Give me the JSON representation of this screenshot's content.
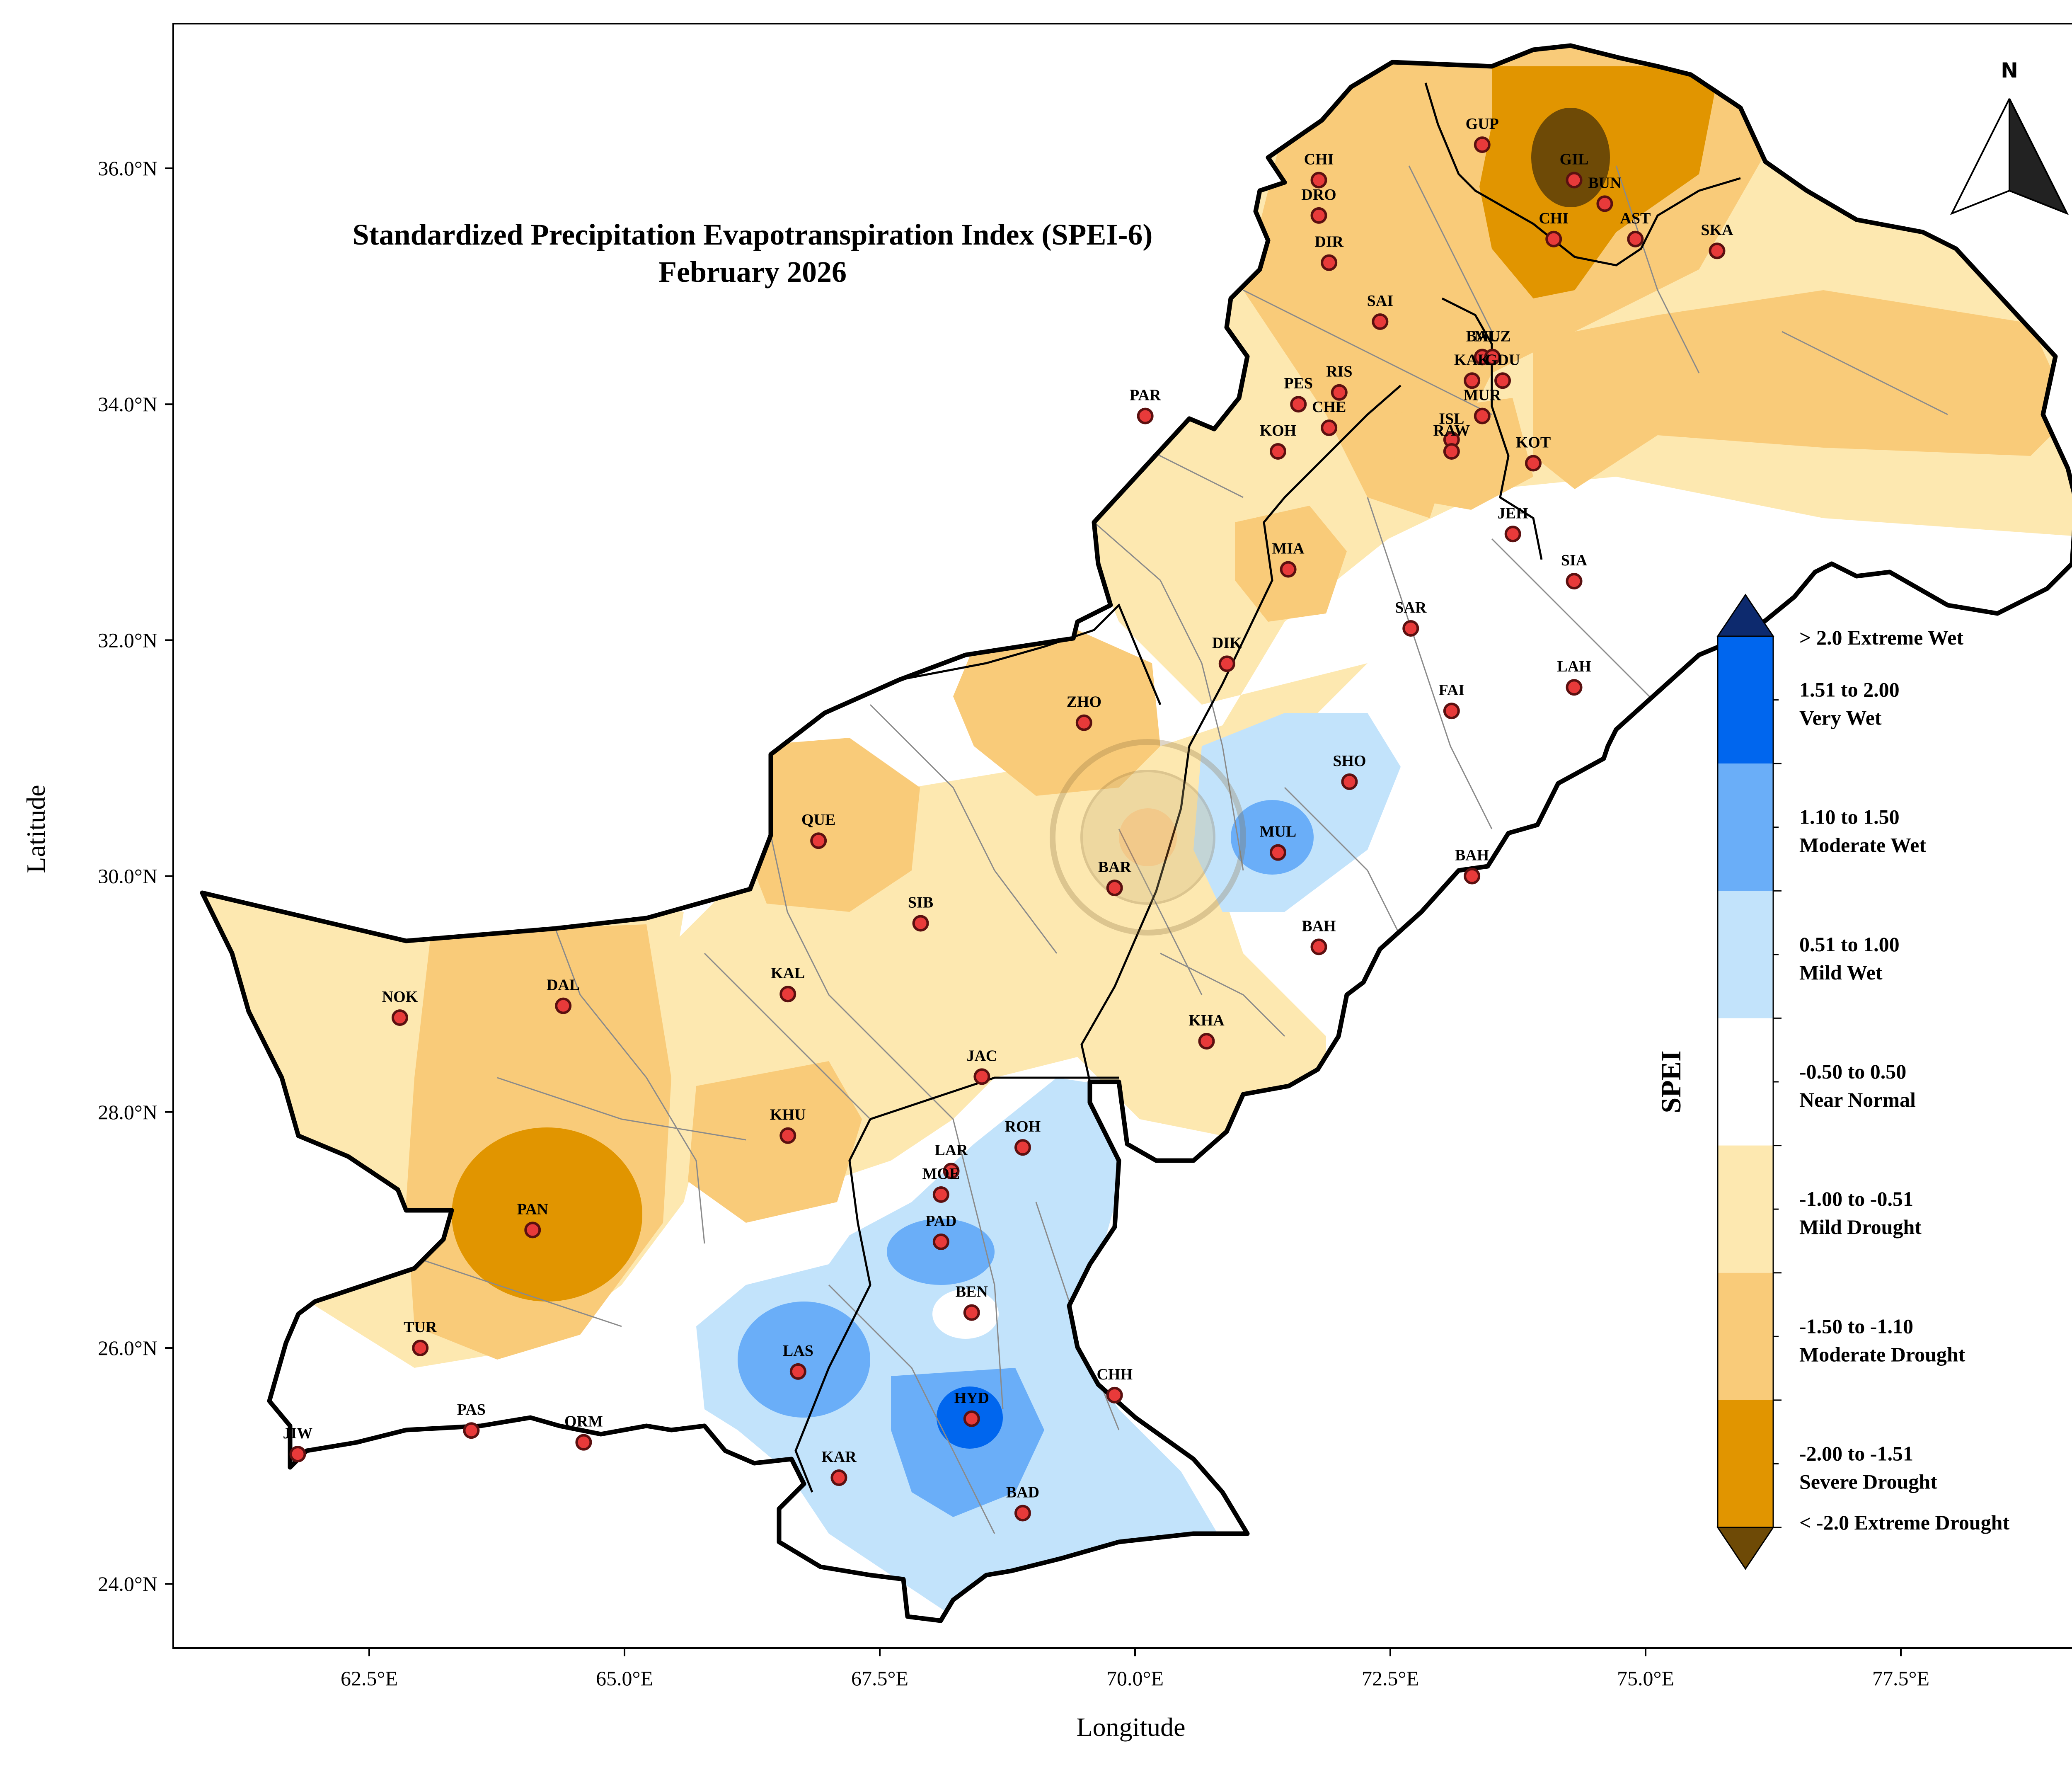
{
  "title": {
    "line1": "Standardized Precipitation Evapotranspiration Index (SPEI-6)",
    "line2": "February 2026"
  },
  "axes": {
    "xlabel": "Longitude",
    "ylabel": "Latitude",
    "xticks": [
      "62.5°E",
      "65.0°E",
      "67.5°E",
      "70.0°E",
      "72.5°E",
      "75.0°E",
      "77.5°E"
    ],
    "yticks": [
      "36.0°N",
      "34.0°N",
      "32.0°N",
      "30.0°N",
      "28.0°N",
      "26.0°N",
      "24.0°N"
    ]
  },
  "north_arrow": {
    "label": "N"
  },
  "colorbar": {
    "title": "SPEI",
    "top_extension": {
      "label": "> 2.0 Extreme Wet",
      "color": "#0d2a6e"
    },
    "bottom_extension": {
      "label": "< -2.0 Extreme Drought",
      "color": "#6e4a06"
    },
    "classes": [
      {
        "line1": "1.51 to 2.00",
        "line2": "Very Wet",
        "color": "#0066ee"
      },
      {
        "line1": "1.10 to 1.50",
        "line2": "Moderate Wet",
        "color": "#6aaef8"
      },
      {
        "line1": "0.51 to 1.00",
        "line2": "Mild Wet",
        "color": "#c2e3fb"
      },
      {
        "line1": "-0.50 to 0.50",
        "line2": "Near Normal",
        "color": "#ffffff"
      },
      {
        "line1": "-1.00 to -0.51",
        "line2": "Mild Drought",
        "color": "#fde8b0"
      },
      {
        "line1": "-1.50 to -1.10",
        "line2": "Moderate Drought",
        "color": "#f9cb79"
      },
      {
        "line1": "-2.00 to -1.51",
        "line2": "Severe Drought",
        "color": "#e19500"
      }
    ]
  },
  "stations": [
    {
      "name": "GUP",
      "lon": 73.4,
      "lat": 36.2
    },
    {
      "name": "GIL",
      "lon": 74.3,
      "lat": 35.9
    },
    {
      "name": "BUN",
      "lon": 74.6,
      "lat": 35.7
    },
    {
      "name": "CHI",
      "lon": 71.8,
      "lat": 35.9
    },
    {
      "name": "DRO",
      "lon": 71.8,
      "lat": 35.6
    },
    {
      "name": "DIR",
      "lon": 71.9,
      "lat": 35.2
    },
    {
      "name": "CHI",
      "lon": 74.1,
      "lat": 35.4
    },
    {
      "name": "AST",
      "lon": 74.9,
      "lat": 35.4
    },
    {
      "name": "SKA",
      "lon": 75.7,
      "lat": 35.3
    },
    {
      "name": "SAI",
      "lon": 72.4,
      "lat": 34.7
    },
    {
      "name": "BAL",
      "lon": 73.4,
      "lat": 34.4
    },
    {
      "name": "MUZ",
      "lon": 73.5,
      "lat": 34.4
    },
    {
      "name": "KAK",
      "lon": 73.3,
      "lat": 34.2
    },
    {
      "name": "GDU",
      "lon": 73.6,
      "lat": 34.2
    },
    {
      "name": "PES",
      "lon": 71.6,
      "lat": 34.0
    },
    {
      "name": "RIS",
      "lon": 72.0,
      "lat": 34.1
    },
    {
      "name": "CHE",
      "lon": 71.9,
      "lat": 33.8
    },
    {
      "name": "MUR",
      "lon": 73.4,
      "lat": 33.9
    },
    {
      "name": "PAR",
      "lon": 70.1,
      "lat": 33.9
    },
    {
      "name": "ISL",
      "lon": 73.1,
      "lat": 33.7
    },
    {
      "name": "RAW",
      "lon": 73.1,
      "lat": 33.6
    },
    {
      "name": "KOH",
      "lon": 71.4,
      "lat": 33.6
    },
    {
      "name": "KOT",
      "lon": 73.9,
      "lat": 33.5
    },
    {
      "name": "JEH",
      "lon": 73.7,
      "lat": 32.9
    },
    {
      "name": "MIA",
      "lon": 71.5,
      "lat": 32.6
    },
    {
      "name": "SIA",
      "lon": 74.3,
      "lat": 32.5
    },
    {
      "name": "SAR",
      "lon": 72.7,
      "lat": 32.1
    },
    {
      "name": "DIK",
      "lon": 70.9,
      "lat": 31.8
    },
    {
      "name": "FAI",
      "lon": 73.1,
      "lat": 31.4
    },
    {
      "name": "LAH",
      "lon": 74.3,
      "lat": 31.6
    },
    {
      "name": "ZHO",
      "lon": 69.5,
      "lat": 31.3
    },
    {
      "name": "SHO",
      "lon": 72.1,
      "lat": 30.8
    },
    {
      "name": "QUE",
      "lon": 66.9,
      "lat": 30.3
    },
    {
      "name": "MUL",
      "lon": 71.4,
      "lat": 30.2
    },
    {
      "name": "BAR",
      "lon": 69.8,
      "lat": 29.9
    },
    {
      "name": "BAH",
      "lon": 73.3,
      "lat": 30.0
    },
    {
      "name": "SIB",
      "lon": 67.9,
      "lat": 29.6
    },
    {
      "name": "BAH",
      "lon": 71.8,
      "lat": 29.4
    },
    {
      "name": "KAL",
      "lon": 66.6,
      "lat": 29.0
    },
    {
      "name": "NOK",
      "lon": 62.8,
      "lat": 28.8
    },
    {
      "name": "DAL",
      "lon": 64.4,
      "lat": 28.9
    },
    {
      "name": "KHA",
      "lon": 70.7,
      "lat": 28.6
    },
    {
      "name": "JAC",
      "lon": 68.5,
      "lat": 28.3
    },
    {
      "name": "KHU",
      "lon": 66.6,
      "lat": 27.8
    },
    {
      "name": "ROH",
      "lon": 68.9,
      "lat": 27.7
    },
    {
      "name": "LAR",
      "lon": 68.2,
      "lat": 27.5
    },
    {
      "name": "MOE",
      "lon": 68.1,
      "lat": 27.3
    },
    {
      "name": "PAN",
      "lon": 64.1,
      "lat": 27.0
    },
    {
      "name": "PAD",
      "lon": 68.1,
      "lat": 26.9
    },
    {
      "name": "BEN",
      "lon": 68.4,
      "lat": 26.3
    },
    {
      "name": "TUR",
      "lon": 63.0,
      "lat": 26.0
    },
    {
      "name": "LAS",
      "lon": 66.7,
      "lat": 25.8
    },
    {
      "name": "CHH",
      "lon": 69.8,
      "lat": 25.6
    },
    {
      "name": "HYD",
      "lon": 68.4,
      "lat": 25.4
    },
    {
      "name": "PAS",
      "lon": 63.5,
      "lat": 25.3
    },
    {
      "name": "ORM",
      "lon": 64.6,
      "lat": 25.2
    },
    {
      "name": "JIW",
      "lon": 61.8,
      "lat": 25.1
    },
    {
      "name": "KAR",
      "lon": 67.1,
      "lat": 24.9
    },
    {
      "name": "BAD",
      "lon": 68.9,
      "lat": 24.6
    }
  ]
}
